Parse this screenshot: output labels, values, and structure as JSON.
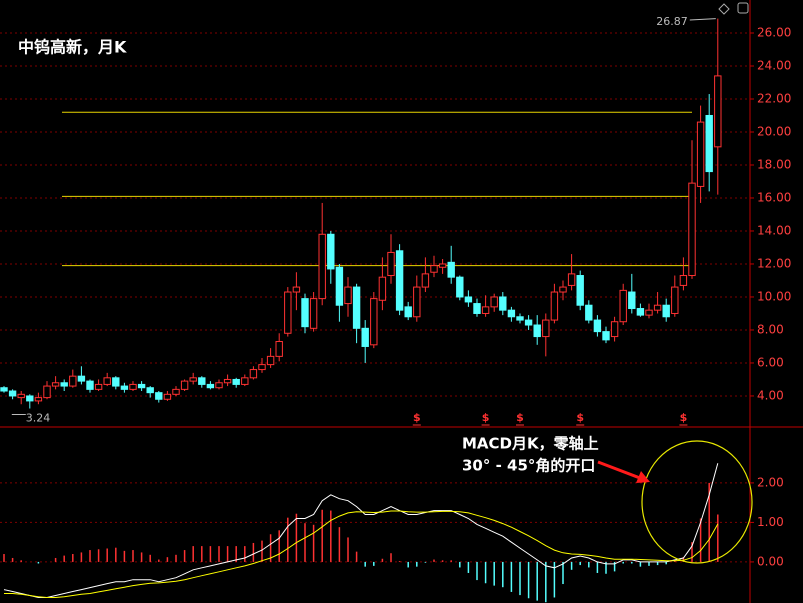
{
  "chart_data": [
    {
      "type": "candlestick",
      "title": "中钨高新，月K",
      "categories": [
        null,
        null,
        null,
        null,
        null,
        null,
        null,
        null,
        null,
        null,
        null,
        null,
        null,
        null,
        null,
        null,
        null,
        null,
        null,
        null,
        null,
        null,
        null,
        null,
        null,
        null,
        null,
        null,
        null,
        null,
        null,
        null,
        null,
        null,
        null,
        null,
        null,
        null,
        null,
        null,
        null,
        null,
        null,
        null,
        null,
        null,
        null,
        null,
        null,
        null,
        null,
        null,
        null,
        null,
        null,
        null,
        null,
        null,
        null,
        null,
        null,
        null,
        null,
        null,
        null,
        null,
        null,
        null,
        null,
        null,
        null,
        null,
        null,
        null,
        null,
        null,
        null,
        null,
        null,
        null,
        null,
        null,
        null,
        null
      ],
      "open": [
        4.5,
        4.3,
        3.9,
        4.0,
        3.7,
        3.9,
        4.6,
        4.8,
        4.6,
        5.2,
        4.9,
        4.4,
        4.7,
        5.1,
        4.6,
        4.4,
        4.7,
        4.5,
        4.2,
        3.8,
        4.1,
        4.4,
        4.9,
        5.1,
        4.7,
        4.5,
        4.8,
        5.0,
        4.7,
        5.1,
        5.6,
        5.9,
        6.4,
        7.8,
        10.3,
        9.9,
        8.1,
        9.9,
        13.8,
        11.8,
        9.6,
        10.6,
        8.1,
        7.1,
        9.8,
        11.3,
        12.8,
        9.4,
        8.8,
        10.6,
        11.5,
        11.8,
        12.1,
        11.2,
        10.0,
        9.6,
        9.0,
        9.4,
        10.0,
        9.2,
        8.8,
        8.6,
        8.3,
        7.6,
        8.6,
        10.3,
        10.7,
        11.3,
        9.5,
        8.6,
        7.9,
        7.6,
        8.5,
        10.3,
        9.3,
        8.9,
        9.2,
        9.5,
        9.0,
        10.7,
        11.3,
        16.7,
        21.0,
        19.1
      ],
      "close": [
        4.3,
        4.0,
        4.1,
        3.7,
        3.9,
        4.6,
        4.8,
        4.6,
        5.2,
        4.9,
        4.4,
        4.7,
        5.1,
        4.6,
        4.4,
        4.7,
        4.5,
        4.2,
        3.8,
        4.1,
        4.4,
        4.9,
        5.1,
        4.7,
        4.5,
        4.8,
        5.0,
        4.7,
        5.1,
        5.6,
        5.9,
        6.4,
        7.3,
        10.3,
        10.6,
        8.2,
        9.9,
        13.8,
        11.7,
        9.5,
        10.6,
        8.1,
        7.0,
        9.9,
        11.2,
        12.7,
        9.2,
        8.8,
        10.6,
        11.4,
        11.9,
        12.0,
        11.2,
        10.0,
        9.7,
        9.0,
        9.4,
        10.0,
        9.2,
        8.8,
        8.6,
        8.3,
        7.6,
        8.6,
        10.3,
        10.6,
        11.4,
        9.5,
        8.6,
        7.9,
        7.4,
        8.5,
        10.4,
        9.3,
        8.9,
        9.2,
        9.5,
        8.8,
        10.6,
        11.3,
        16.9,
        20.6,
        17.6,
        23.4
      ],
      "high": [
        4.6,
        4.4,
        4.3,
        4.1,
        4.2,
        4.9,
        5.2,
        5.0,
        5.6,
        5.8,
        5.0,
        5.0,
        5.4,
        5.2,
        4.8,
        4.9,
        4.9,
        4.6,
        4.3,
        4.3,
        4.6,
        5.0,
        5.4,
        5.2,
        4.9,
        5.0,
        5.3,
        5.1,
        5.3,
        5.8,
        6.3,
        6.9,
        7.8,
        10.6,
        11.5,
        10.2,
        10.3,
        15.7,
        14.0,
        12.0,
        11.2,
        10.8,
        8.6,
        10.3,
        12.4,
        13.8,
        13.2,
        9.7,
        11.3,
        12.4,
        12.5,
        12.3,
        13.1,
        11.3,
        10.4,
        9.9,
        10.1,
        10.2,
        10.3,
        9.4,
        9.0,
        8.9,
        8.9,
        9.0,
        10.8,
        11.0,
        12.6,
        11.6,
        9.8,
        8.9,
        8.2,
        8.8,
        10.8,
        11.4,
        9.6,
        9.6,
        10.3,
        9.9,
        11.3,
        12.4,
        19.5,
        21.6,
        22.3,
        26.87
      ],
      "low": [
        4.2,
        3.8,
        3.5,
        3.24,
        3.5,
        3.8,
        4.4,
        4.3,
        4.5,
        4.7,
        4.2,
        4.3,
        4.6,
        4.4,
        4.2,
        4.3,
        4.3,
        3.9,
        3.6,
        3.7,
        4.0,
        4.3,
        4.7,
        4.5,
        4.4,
        4.4,
        4.6,
        4.5,
        4.6,
        5.0,
        5.4,
        5.7,
        6.1,
        7.6,
        9.2,
        7.8,
        7.9,
        9.5,
        10.8,
        8.5,
        8.8,
        7.2,
        6.0,
        6.9,
        9.2,
        10.8,
        8.9,
        8.6,
        8.5,
        10.3,
        11.2,
        11.4,
        10.8,
        9.8,
        9.4,
        8.8,
        8.8,
        9.1,
        8.9,
        8.5,
        8.4,
        8.0,
        7.1,
        6.4,
        8.4,
        9.8,
        10.4,
        9.2,
        8.4,
        7.6,
        7.2,
        7.3,
        8.3,
        9.0,
        8.8,
        8.7,
        9.0,
        8.5,
        8.8,
        10.4,
        11.1,
        15.7,
        16.4,
        16.2
      ],
      "up_color": "#ff3232",
      "down_color": "#54ffff",
      "ylim": [
        2.24,
        28
      ],
      "yticks": [
        {
          "value": 4,
          "label": "4.00"
        },
        {
          "value": 6,
          "label": "6.00"
        },
        {
          "value": 8,
          "label": "8.00"
        },
        {
          "value": 10,
          "label": "10.00"
        },
        {
          "value": 12,
          "label": "12.00"
        },
        {
          "value": 14,
          "label": "14.00"
        },
        {
          "value": 16,
          "label": "16.00"
        },
        {
          "value": 18,
          "label": "18.00"
        },
        {
          "value": 20,
          "label": "20.00"
        },
        {
          "value": 22,
          "label": "22.00"
        },
        {
          "value": 24,
          "label": "24.00"
        },
        {
          "value": 26,
          "label": "26.00"
        }
      ],
      "grid": true,
      "hlines": [
        21.2,
        16.1,
        11.9
      ],
      "hline_color": "#e8d400",
      "events": {
        "label": "$",
        "indices": [
          48,
          56,
          60,
          67,
          79
        ],
        "color": "#ff3232"
      }
    },
    {
      "type": "macd",
      "series": [
        {
          "color": "#ffffff",
          "values": [
            -0.7,
            -0.75,
            -0.8,
            -0.85,
            -0.9,
            -0.9,
            -0.85,
            -0.8,
            -0.75,
            -0.7,
            -0.65,
            -0.6,
            -0.55,
            -0.5,
            -0.5,
            -0.45,
            -0.45,
            -0.45,
            -0.5,
            -0.45,
            -0.4,
            -0.3,
            -0.2,
            -0.15,
            -0.1,
            -0.05,
            0,
            0.05,
            0.1,
            0.2,
            0.3,
            0.45,
            0.6,
            0.9,
            1.1,
            1.1,
            1.2,
            1.55,
            1.7,
            1.6,
            1.55,
            1.4,
            1.2,
            1.2,
            1.3,
            1.4,
            1.3,
            1.2,
            1.2,
            1.25,
            1.3,
            1.3,
            1.3,
            1.2,
            1.1,
            0.95,
            0.85,
            0.75,
            0.65,
            0.5,
            0.35,
            0.2,
            0.05,
            -0.1,
            -0.15,
            -0.05,
            0.1,
            0.15,
            0.1,
            0,
            -0.05,
            -0.05,
            0.05,
            0.05,
            0,
            0,
            0,
            0,
            0.05,
            0.1,
            0.4,
            1.0,
            1.7,
            2.5
          ]
        },
        {
          "color": "#ffff00",
          "values": [
            -0.8,
            -0.8,
            -0.82,
            -0.85,
            -0.88,
            -0.9,
            -0.9,
            -0.88,
            -0.85,
            -0.82,
            -0.8,
            -0.76,
            -0.72,
            -0.68,
            -0.64,
            -0.6,
            -0.57,
            -0.54,
            -0.53,
            -0.51,
            -0.49,
            -0.45,
            -0.4,
            -0.35,
            -0.3,
            -0.25,
            -0.2,
            -0.15,
            -0.1,
            -0.04,
            0.03,
            0.1,
            0.2,
            0.34,
            0.49,
            0.61,
            0.73,
            0.89,
            1.05,
            1.16,
            1.24,
            1.27,
            1.26,
            1.25,
            1.26,
            1.29,
            1.29,
            1.27,
            1.26,
            1.26,
            1.27,
            1.28,
            1.28,
            1.27,
            1.24,
            1.18,
            1.12,
            1.05,
            0.97,
            0.88,
            0.77,
            0.66,
            0.54,
            0.41,
            0.3,
            0.23,
            0.2,
            0.19,
            0.17,
            0.14,
            0.1,
            0.07,
            0.07,
            0.07,
            0.06,
            0.05,
            0.04,
            0.03,
            0.03,
            0.04,
            0.11,
            0.29,
            0.57,
            0.96
          ]
        }
      ],
      "histogram": {
        "up_color": "#ff3232",
        "down_color": "#54ffff",
        "values": [
          0.2,
          0.1,
          0.04,
          0,
          -0.04,
          0,
          0.1,
          0.16,
          0.2,
          0.24,
          0.3,
          0.32,
          0.34,
          0.36,
          0.28,
          0.3,
          0.24,
          0.18,
          0.06,
          0.12,
          0.18,
          0.3,
          0.4,
          0.4,
          0.4,
          0.4,
          0.4,
          0.4,
          0.4,
          0.48,
          0.54,
          0.7,
          0.8,
          1.12,
          1.22,
          0.98,
          0.94,
          1.32,
          1.3,
          0.88,
          0.62,
          0.26,
          -0.12,
          -0.1,
          0.08,
          0.22,
          0.02,
          -0.14,
          -0.12,
          -0.02,
          0.06,
          0.04,
          0.04,
          -0.14,
          -0.28,
          -0.46,
          -0.54,
          -0.6,
          -0.64,
          -0.76,
          -0.84,
          -0.92,
          -0.98,
          -1.02,
          -0.9,
          -0.56,
          -0.2,
          -0.08,
          -0.14,
          -0.28,
          -0.3,
          -0.24,
          -0.04,
          -0.04,
          -0.12,
          -0.1,
          -0.08,
          -0.06,
          0.04,
          0.12,
          0.5,
          1.1,
          2.0,
          1.2
        ]
      },
      "ylim": [
        -1.04,
        3.39
      ],
      "yticks": [
        {
          "value": 0,
          "label": "0.00"
        },
        {
          "value": 1,
          "label": "1.00"
        },
        {
          "value": 2,
          "label": "2.00"
        }
      ],
      "grid": true,
      "annotations": [
        "MACD月K，零轴上",
        "30° - 45°角的开口"
      ]
    }
  ]
}
